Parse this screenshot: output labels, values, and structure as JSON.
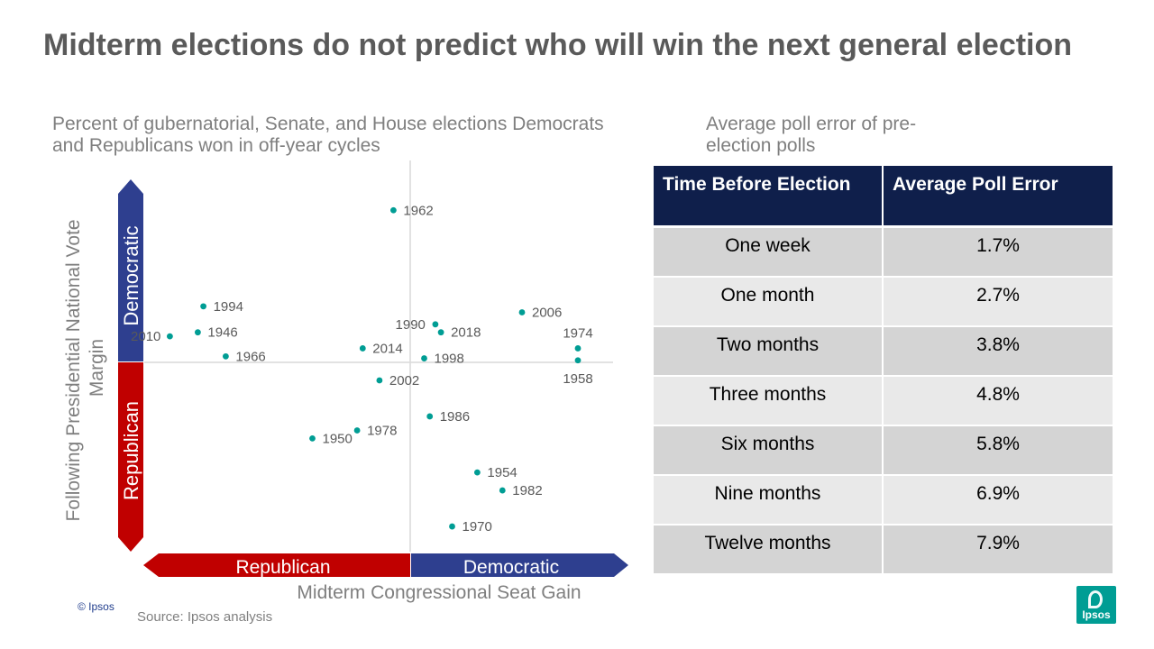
{
  "title": "Midterm elections do not predict who will win the next general election",
  "left_subtitle": "Percent of gubernatorial, Senate, and House elections Democrats and Republicans won in off-year cycles",
  "right_subtitle": "Average poll error of pre-election polls",
  "chart_data": {
    "type": "scatter",
    "xlabel": "Midterm Congressional Seat Gain",
    "ylabel": "Following Presidential National Vote Margin",
    "x_arrow": {
      "left": "Republican",
      "right": "Democratic"
    },
    "y_arrow": {
      "top": "Democratic",
      "bottom": "Republican"
    },
    "grid": false,
    "xlim": [
      -1,
      1
    ],
    "ylim": [
      -1,
      1
    ],
    "points": [
      {
        "label": "1962",
        "x": -0.06,
        "y": 0.76
      },
      {
        "label": "1994",
        "x": -0.74,
        "y": 0.28
      },
      {
        "label": "1946",
        "x": -0.76,
        "y": 0.15
      },
      {
        "label": "2010",
        "x": -0.86,
        "y": 0.13
      },
      {
        "label": "1966",
        "x": -0.66,
        "y": 0.03
      },
      {
        "label": "2014",
        "x": -0.17,
        "y": 0.07
      },
      {
        "label": "1990",
        "x": 0.09,
        "y": 0.19
      },
      {
        "label": "2018",
        "x": 0.11,
        "y": 0.15
      },
      {
        "label": "1998",
        "x": 0.05,
        "y": 0.02
      },
      {
        "label": "2002",
        "x": -0.11,
        "y": -0.09
      },
      {
        "label": "2006",
        "x": 0.4,
        "y": 0.25
      },
      {
        "label": "1974",
        "x": 0.6,
        "y": 0.07
      },
      {
        "label": "1958",
        "x": 0.6,
        "y": 0.01
      },
      {
        "label": "1986",
        "x": 0.07,
        "y": -0.27
      },
      {
        "label": "1978",
        "x": -0.19,
        "y": -0.34
      },
      {
        "label": "1950",
        "x": -0.35,
        "y": -0.38
      },
      {
        "label": "1954",
        "x": 0.24,
        "y": -0.55
      },
      {
        "label": "1982",
        "x": 0.33,
        "y": -0.64
      },
      {
        "label": "1970",
        "x": 0.15,
        "y": -0.82
      }
    ]
  },
  "table": {
    "headers": [
      "Time Before Election",
      "Average Poll Error"
    ],
    "rows": [
      [
        "One week",
        "1.7%"
      ],
      [
        "One month",
        "2.7%"
      ],
      [
        "Two months",
        "3.8%"
      ],
      [
        "Three months",
        "4.8%"
      ],
      [
        "Six months",
        "5.8%"
      ],
      [
        "Nine months",
        "6.9%"
      ],
      [
        "Twelve months",
        "7.9%"
      ]
    ]
  },
  "footer": {
    "copyright": "© Ipsos",
    "source": "Source: Ipsos analysis",
    "logo_text": "Ipsos"
  },
  "colors": {
    "point": "#009d94",
    "republican": "#c00000",
    "democratic": "#2e3f8f",
    "header_bg": "#0f1f4b"
  }
}
